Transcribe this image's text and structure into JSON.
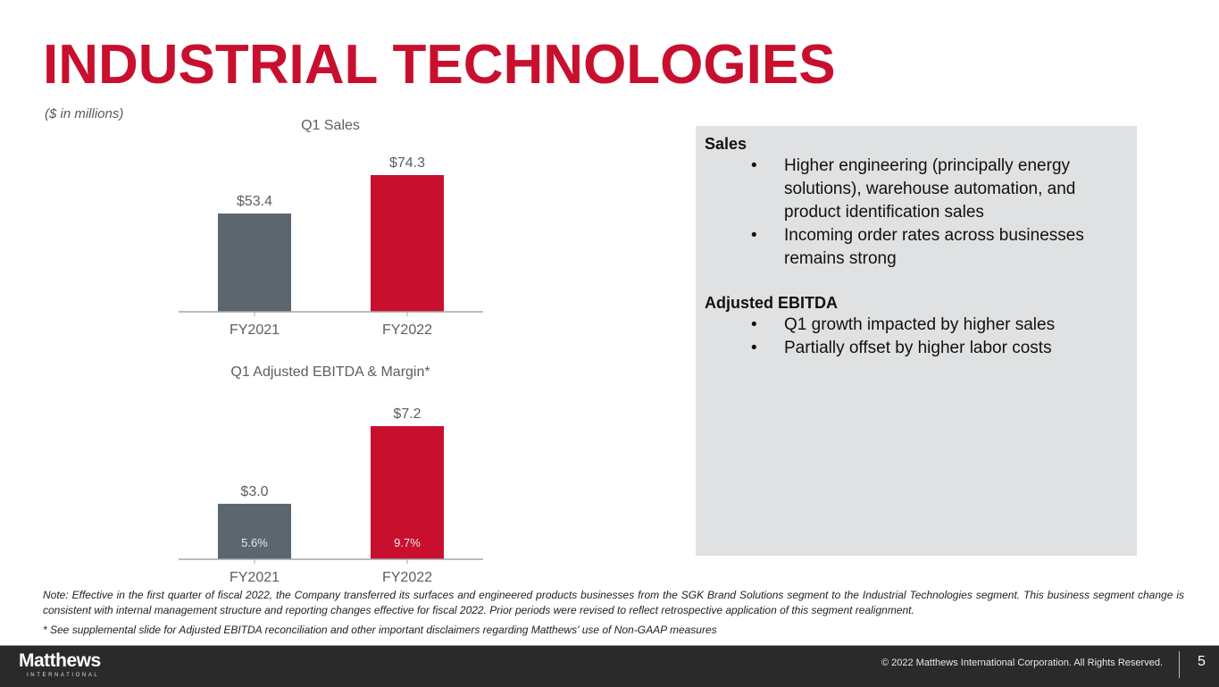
{
  "title": "INDUSTRIAL TECHNOLOGIES",
  "units_note": "($ in millions)",
  "colors": {
    "brand_red": "#c8102e",
    "prior_year_gray": "#5b666e",
    "panel_bg": "#dfe1e2",
    "footer_bg": "#2b2a2b"
  },
  "chart_data": [
    {
      "type": "bar",
      "title": "Q1 Sales",
      "categories": [
        "FY2021",
        "FY2022"
      ],
      "values": [
        53.4,
        74.3
      ],
      "data_labels": [
        "$53.4",
        "$74.3"
      ],
      "bar_colors": [
        "#5b666e",
        "#c8102e"
      ],
      "xlabel": "",
      "ylabel": "",
      "ylim": [
        0,
        74.3
      ],
      "grid": false,
      "legend": "none"
    },
    {
      "type": "bar",
      "title": "Q1 Adjusted EBITDA & Margin*",
      "categories": [
        "FY2021",
        "FY2022"
      ],
      "values": [
        3.0,
        7.2
      ],
      "data_labels": [
        "$3.0",
        "$7.2"
      ],
      "margins": [
        "5.6%",
        "9.7%"
      ],
      "bar_colors": [
        "#5b666e",
        "#c8102e"
      ],
      "xlabel": "",
      "ylabel": "",
      "ylim": [
        0,
        7.2
      ],
      "grid": false,
      "legend": "none"
    }
  ],
  "panel": {
    "sections": [
      {
        "heading": "Sales",
        "bullets": [
          "Higher engineering (principally energy solutions), warehouse automation, and product identification sales",
          "Incoming order rates across businesses remains strong"
        ]
      },
      {
        "heading": "Adjusted EBITDA",
        "bullets": [
          "Q1 growth impacted by higher sales",
          "Partially offset by higher labor costs"
        ]
      }
    ],
    "bullet_glyph": "•"
  },
  "note": "Note:  Effective in the first quarter of fiscal 2022, the Company transferred its surfaces and engineered products businesses from the SGK Brand Solutions segment to the Industrial Technologies segment.  This business segment change is consistent with internal management structure and reporting changes effective for fiscal 2022.  Prior periods were revised to reflect retrospective application of this segment realignment.",
  "footnote": "* See supplemental slide for Adjusted EBITDA reconciliation and other important disclaimers regarding Matthews' use of Non-GAAP measures",
  "footer": {
    "logo_main": "Matthews",
    "logo_sub": "INTERNATIONAL",
    "copyright": "© 2022 Matthews International Corporation. All Rights Reserved.",
    "page_number": "5"
  }
}
